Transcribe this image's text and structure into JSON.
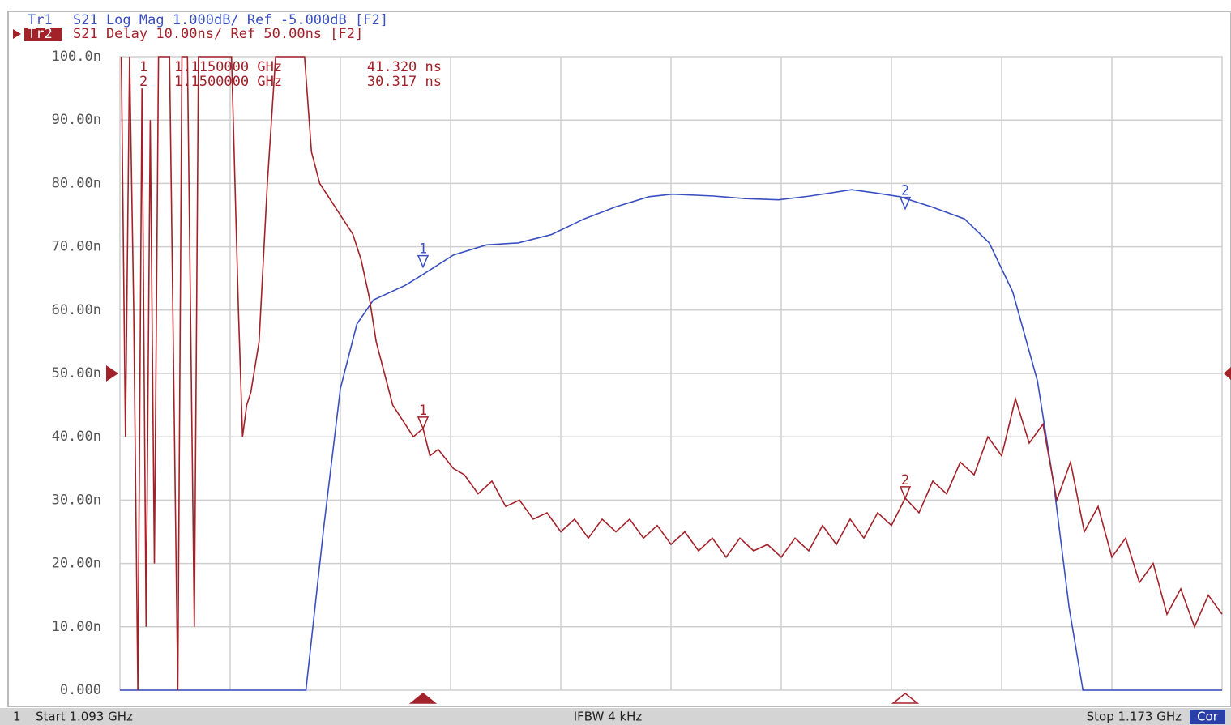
{
  "chart_data": {
    "type": "line",
    "xlim": [
      1.093,
      1.173
    ],
    "xticks": [
      1.093,
      1.101,
      1.109,
      1.117,
      1.125,
      1.133,
      1.141,
      1.149,
      1.157,
      1.165,
      1.173
    ],
    "ylim": [
      0,
      100
    ],
    "yticks": [
      {
        "value": 0,
        "label": "0.000"
      },
      {
        "value": 10,
        "label": "10.00n"
      },
      {
        "value": 20,
        "label": "20.00n"
      },
      {
        "value": 30,
        "label": "30.00n"
      },
      {
        "value": 40,
        "label": "40.00n"
      },
      {
        "value": 50,
        "label": "50.00n"
      },
      {
        "value": 60,
        "label": "60.00n"
      },
      {
        "value": 70,
        "label": "70.00n"
      },
      {
        "value": 80,
        "label": "80.00n"
      },
      {
        "value": 90,
        "label": "90.00n"
      },
      {
        "value": 100,
        "label": "100.0n"
      }
    ],
    "y2lim": [
      -10,
      0
    ],
    "grid": true,
    "series": [
      {
        "name": "Tr1",
        "header": "S21 Log Mag 1.000dB/ Ref -5.000dB [F2]",
        "color": "#3a4fc0",
        "axis": "y2",
        "x": [
          1.093,
          1.1065,
          1.1078,
          1.109,
          1.1102,
          1.1114,
          1.1137,
          1.1149,
          1.1172,
          1.1196,
          1.1219,
          1.1243,
          1.1267,
          1.129,
          1.1314,
          1.1331,
          1.1361,
          1.1384,
          1.1408,
          1.1431,
          1.1461,
          1.1478,
          1.1496,
          1.1519,
          1.1543,
          1.1561,
          1.1578,
          1.1596,
          1.1608,
          1.1619,
          1.1629,
          1.173
        ],
        "values": [
          -10,
          -10,
          -7.42,
          -5.24,
          -4.22,
          -3.84,
          -3.61,
          -3.45,
          -3.13,
          -2.97,
          -2.94,
          -2.81,
          -2.56,
          -2.37,
          -2.21,
          -2.17,
          -2.2,
          -2.24,
          -2.26,
          -2.2,
          -2.1,
          -2.15,
          -2.21,
          -2.37,
          -2.56,
          -2.94,
          -3.71,
          -5.12,
          -6.78,
          -8.7,
          -10,
          -10
        ]
      },
      {
        "name": "Tr2",
        "header": "S21 Delay 10.00ns/ Ref 50.00ns [F2]",
        "color": "#a3222a",
        "ref_level": 50,
        "x": [
          1.0931,
          1.0934,
          1.0937,
          1.094,
          1.0943,
          1.0946,
          1.0949,
          1.0952,
          1.0955,
          1.0958,
          1.0966,
          1.0972,
          1.0975,
          1.0979,
          1.0984,
          1.0987,
          1.1002,
          1.1011,
          1.1016,
          1.1019,
          1.1022,
          1.1025,
          1.1031,
          1.1037,
          1.1043,
          1.1064,
          1.1069,
          1.1075,
          1.1081,
          1.109,
          1.1099,
          1.1105,
          1.1111,
          1.1116,
          1.1122,
          1.1128,
          1.1137,
          1.1143,
          1.115,
          1.1155,
          1.1161,
          1.1172,
          1.118,
          1.119,
          1.12,
          1.121,
          1.122,
          1.123,
          1.124,
          1.125,
          1.126,
          1.127,
          1.128,
          1.129,
          1.13,
          1.131,
          1.132,
          1.133,
          1.134,
          1.135,
          1.136,
          1.137,
          1.138,
          1.139,
          1.14,
          1.141,
          1.142,
          1.143,
          1.144,
          1.145,
          1.146,
          1.147,
          1.148,
          1.149,
          1.15,
          1.151,
          1.152,
          1.153,
          1.154,
          1.155,
          1.156,
          1.157,
          1.158,
          1.159,
          1.16,
          1.161,
          1.162,
          1.163,
          1.164,
          1.165,
          1.166,
          1.167,
          1.168,
          1.169,
          1.17,
          1.171,
          1.172,
          1.173
        ],
        "values": [
          100,
          40,
          100,
          60,
          0,
          95,
          10,
          90,
          20,
          100,
          100,
          0,
          100,
          100,
          10,
          100,
          100,
          100,
          60,
          40,
          45,
          47,
          55,
          80,
          100,
          100,
          85,
          80,
          78,
          75,
          72,
          68,
          62,
          55,
          50,
          45,
          42,
          40,
          41.32,
          37,
          38,
          35,
          34,
          31,
          33,
          29,
          30,
          27,
          28,
          25,
          27,
          24,
          27,
          25,
          27,
          24,
          26,
          23,
          25,
          22,
          24,
          21,
          24,
          22,
          23,
          21,
          24,
          22,
          26,
          23,
          27,
          24,
          28,
          26,
          30.317,
          28,
          33,
          31,
          36,
          34,
          40,
          37,
          46,
          39,
          42,
          30,
          36,
          25,
          29,
          21,
          24,
          17,
          20,
          12,
          16,
          10,
          15,
          12
        ]
      }
    ],
    "markers": [
      {
        "name": "1",
        "freq": "1.1150000 GHz",
        "readout": "41.320 ns",
        "x": 1.115,
        "value": 41.32,
        "value_y2": -3.32
      },
      {
        "name": "2",
        "freq": "1.1500000 GHz",
        "readout": "30.317 ns",
        "x": 1.15,
        "value": 30.317,
        "value_y2": -2.4
      }
    ],
    "status": {
      "channel": "1",
      "start": "Start 1.093 GHz",
      "ifbw": "IFBW 4 kHz",
      "stop": "Stop 1.173 GHz",
      "correction": "Cor"
    }
  }
}
